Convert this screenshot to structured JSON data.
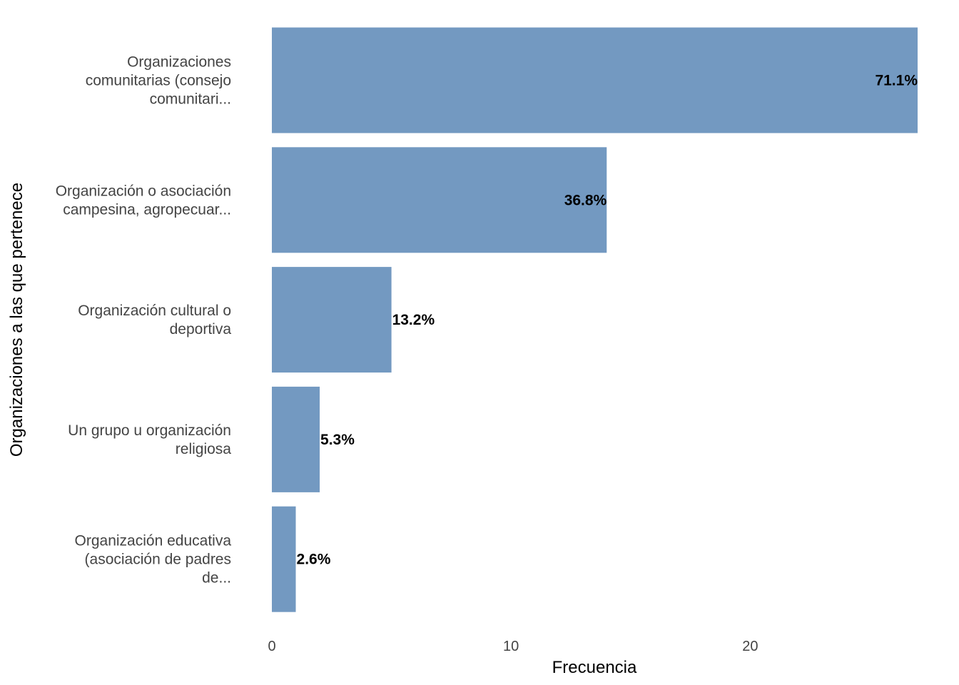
{
  "chart_data": {
    "type": "bar",
    "orientation": "horizontal",
    "title": "",
    "xlabel": "Frecuencia",
    "ylabel": "Organizaciones a las que pertenece",
    "categories": [
      [
        "Organizaciones",
        "comunitarias (consejo",
        "comunitari..."
      ],
      [
        "Organización o asociación",
        "campesina, agropecuar..."
      ],
      [
        "Organización cultural o",
        "deportiva"
      ],
      [
        "Un grupo u organización",
        "religiosa"
      ],
      [
        "Organización educativa",
        "(asociación de padres",
        "de..."
      ]
    ],
    "values": [
      27,
      14,
      5,
      2,
      1
    ],
    "labels": [
      "71.1%",
      "36.8%",
      "13.2%",
      "5.3%",
      "2.6%"
    ],
    "xlim": [
      0,
      27
    ],
    "xticks": [
      0,
      10,
      20
    ],
    "xtick_labels": [
      "0",
      "10",
      "20"
    ],
    "grid": false,
    "bar_color": "#7399c1"
  }
}
